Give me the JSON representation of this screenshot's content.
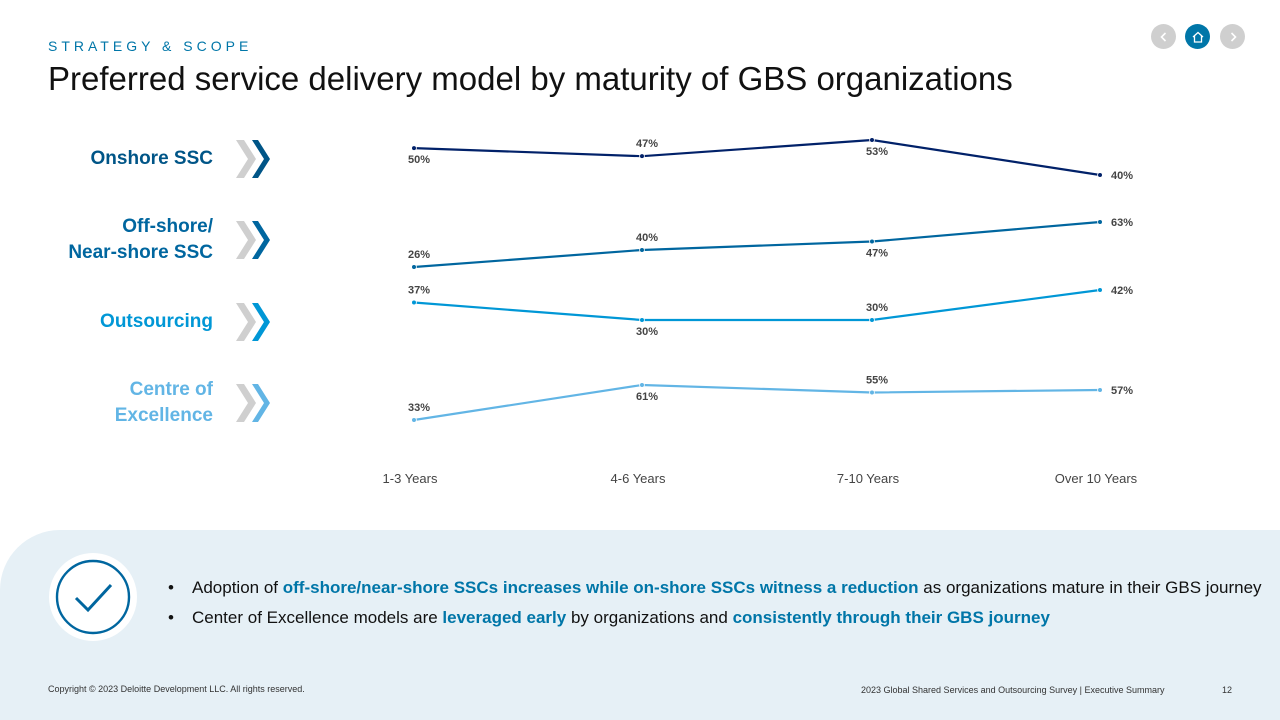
{
  "header": {
    "eyebrow": "STRATEGY & SCOPE",
    "title": "Preferred service delivery model by maturity of GBS organizations"
  },
  "nav": {
    "prev_icon": "chevron-left-icon",
    "home_icon": "home-icon",
    "next_icon": "chevron-right-icon",
    "accent": "#0076a8",
    "inactive": "#cfcfcf"
  },
  "rows": [
    {
      "label_line1": "Onshore SSC",
      "label_line2": "",
      "color": "#005587"
    },
    {
      "label_line1": "Off-shore/",
      "label_line2": "Near-shore SSC",
      "color": "#00669f"
    },
    {
      "label_line1": "Outsourcing",
      "label_line2": "",
      "color": "#0097d6"
    },
    {
      "label_line1": "Centre of",
      "label_line2": "Excellence",
      "color": "#62b5e5"
    }
  ],
  "chart_data": {
    "type": "line",
    "categories": [
      "1-3 Years",
      "4-6 Years",
      "7-10 Years",
      "Over 10 Years"
    ],
    "series": [
      {
        "name": "Onshore SSC",
        "values": [
          50,
          47,
          53,
          40
        ],
        "labels": [
          "50%",
          "47%",
          "53%",
          "40%"
        ],
        "color": "#012169"
      },
      {
        "name": "Off-shore/ Near-shore SSC",
        "values": [
          26,
          40,
          47,
          63
        ],
        "labels": [
          "26%",
          "40%",
          "47%",
          "63%"
        ],
        "color": "#00669f"
      },
      {
        "name": "Outsourcing",
        "values": [
          37,
          30,
          30,
          42
        ],
        "labels": [
          "37%",
          "30%",
          "30%",
          "42%"
        ],
        "color": "#0097d6"
      },
      {
        "name": "Centre of Excellence",
        "values": [
          33,
          61,
          55,
          57
        ],
        "labels": [
          "33%",
          "61%",
          "55%",
          "57%"
        ],
        "color": "#62b5e5"
      }
    ]
  },
  "takeaways": {
    "icon": "checkmark-icon",
    "bullet1": {
      "pre": "Adoption of ",
      "highlight": "off-shore/near-shore SSCs increases while on-shore SSCs witness a reduction",
      "post": " as organizations mature in their GBS journey"
    },
    "bullet2": {
      "pre": "Center of Excellence models are ",
      "highlight1": "leveraged early",
      "mid": " by organizations and ",
      "highlight2": "consistently through their GBS journey"
    }
  },
  "footer": {
    "copyright": "Copyright © 2023 Deloitte Development LLC. All rights reserved.",
    "survey": "2023 Global Shared Services and Outsourcing Survey | Executive Summary",
    "page": "12"
  }
}
